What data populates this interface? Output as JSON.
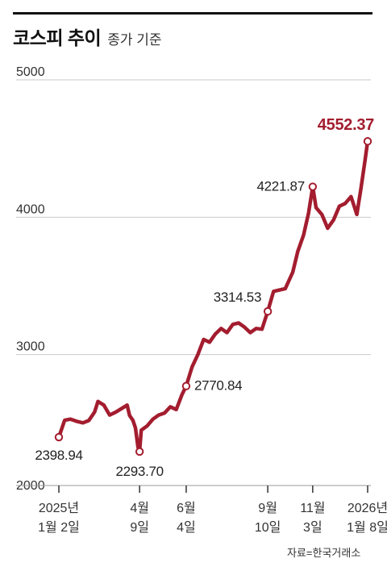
{
  "header": {
    "title": "코스피 추이",
    "subtitle": "종가 기준"
  },
  "source": "자료=한국거래소",
  "colors": {
    "line": "#a31d2f",
    "axis": "#333333",
    "grid": "#c9c9c9",
    "highlight": "#a31d2f"
  },
  "chart_data": {
    "type": "line",
    "title": "코스피 추이",
    "subtitle": "종가 기준",
    "xlabel": "",
    "ylabel": "",
    "ylim": [
      2000,
      5000
    ],
    "yticks": [
      2000,
      3000,
      4000,
      5000
    ],
    "grid": true,
    "xticks": [
      {
        "date": "2025-01-02",
        "line1": "2025년",
        "line2": "1월 2일"
      },
      {
        "date": "2025-04-09",
        "line1": "4월",
        "line2": "9일"
      },
      {
        "date": "2025-06-04",
        "line1": "6월",
        "line2": "4일"
      },
      {
        "date": "2025-09-10",
        "line1": "9월",
        "line2": "10일"
      },
      {
        "date": "2025-11-03",
        "line1": "11월",
        "line2": "3일"
      },
      {
        "date": "2026-01-08",
        "line1": "2026년",
        "line2": "1월 8일"
      }
    ],
    "annotations": [
      {
        "date": "2025-01-02",
        "value": 2398.94,
        "label": "2398.94"
      },
      {
        "date": "2025-04-09",
        "value": 2293.7,
        "label": "2293.70"
      },
      {
        "date": "2025-06-04",
        "value": 2770.84,
        "label": "2770.84"
      },
      {
        "date": "2025-09-10",
        "value": 3314.53,
        "label": "3314.53"
      },
      {
        "date": "2025-11-03",
        "value": 4221.87,
        "label": "4221.87"
      },
      {
        "date": "2026-01-08",
        "value": 4552.37,
        "label": "4552.37"
      }
    ],
    "series": [
      {
        "x": [
          "2025-01-02",
          "2025-01-09",
          "2025-01-16",
          "2025-01-23",
          "2025-01-31",
          "2025-02-07",
          "2025-02-14",
          "2025-02-18",
          "2025-02-25",
          "2025-03-04",
          "2025-03-11",
          "2025-03-18",
          "2025-03-25",
          "2025-03-28",
          "2025-04-01",
          "2025-04-04",
          "2025-04-07",
          "2025-04-09",
          "2025-04-11",
          "2025-04-18",
          "2025-04-25",
          "2025-05-02",
          "2025-05-09",
          "2025-05-16",
          "2025-05-23",
          "2025-05-30",
          "2025-06-04",
          "2025-06-11",
          "2025-06-18",
          "2025-06-25",
          "2025-07-02",
          "2025-07-09",
          "2025-07-16",
          "2025-07-23",
          "2025-07-30",
          "2025-08-06",
          "2025-08-13",
          "2025-08-20",
          "2025-08-27",
          "2025-09-03",
          "2025-09-10",
          "2025-09-17",
          "2025-09-24",
          "2025-10-01",
          "2025-10-10",
          "2025-10-16",
          "2025-10-23",
          "2025-10-29",
          "2025-11-03",
          "2025-11-07",
          "2025-11-14",
          "2025-11-21",
          "2025-11-28",
          "2025-12-05",
          "2025-12-12",
          "2025-12-19",
          "2025-12-26",
          "2025-12-31",
          "2026-01-05",
          "2026-01-08"
        ],
        "values": [
          2398.94,
          2522,
          2530,
          2515,
          2503,
          2520,
          2583,
          2659,
          2633,
          2560,
          2580,
          2606,
          2632,
          2557,
          2521,
          2466,
          2328,
          2293.7,
          2450,
          2480,
          2530,
          2560,
          2575,
          2620,
          2600,
          2710,
          2770.84,
          2910,
          3000,
          3110,
          3090,
          3150,
          3190,
          3160,
          3220,
          3230,
          3200,
          3160,
          3190,
          3185,
          3314.53,
          3460,
          3470,
          3480,
          3600,
          3750,
          3870,
          4030,
          4221.87,
          4070,
          4020,
          3920,
          3980,
          4080,
          4100,
          4150,
          4020,
          4210,
          4420,
          4552.37
        ]
      }
    ]
  }
}
